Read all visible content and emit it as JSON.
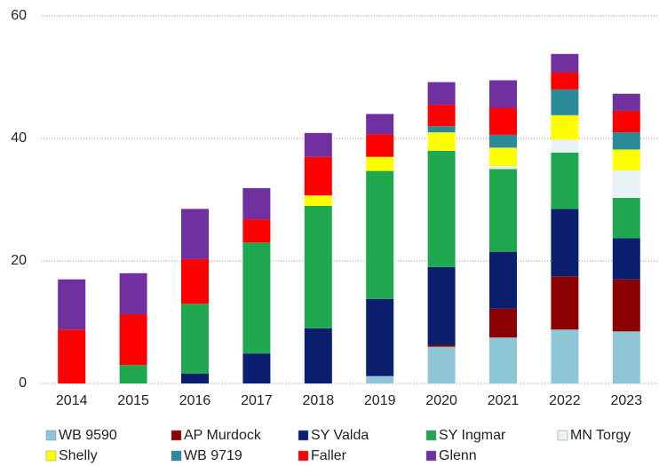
{
  "chart_data": {
    "type": "stacked_bar",
    "categories": [
      "2014",
      "2015",
      "2016",
      "2017",
      "2018",
      "2019",
      "2020",
      "2021",
      "2022",
      "2023"
    ],
    "series": [
      {
        "name": "WB 9590",
        "color": "#8fc6d6",
        "values": [
          0,
          0,
          0,
          0,
          0,
          1.2,
          6,
          7.5,
          8.8,
          8.5
        ]
      },
      {
        "name": "AP Murdock",
        "color": "#8b0000",
        "values": [
          0,
          0,
          0,
          0,
          0,
          0,
          0.3,
          4.7,
          8.7,
          8.5
        ]
      },
      {
        "name": "SY Valda",
        "color": "#0a1f6e",
        "values": [
          0,
          0,
          1.6,
          4.9,
          9,
          12.6,
          12.7,
          9.3,
          11,
          6.7
        ]
      },
      {
        "name": "SY Ingmar",
        "color": "#1fa84f",
        "values": [
          0,
          3,
          11.4,
          18.1,
          20,
          20.9,
          19,
          13.5,
          9.2,
          6.6
        ]
      },
      {
        "name": "MN Torgy",
        "color": "#e8f2f5",
        "values": [
          0,
          0,
          0,
          0,
          0,
          0,
          0,
          0.5,
          2.1,
          4.5
        ]
      },
      {
        "name": "Shelly",
        "color": "#ffff00",
        "values": [
          0,
          0,
          0,
          0,
          1.7,
          2.3,
          3,
          3,
          4,
          3.4
        ]
      },
      {
        "name": "WB 9719",
        "color": "#2a8a9a",
        "values": [
          0,
          0,
          0,
          0,
          0,
          0,
          1,
          2.1,
          4.2,
          2.8
        ]
      },
      {
        "name": "Faller",
        "color": "#ff0000",
        "values": [
          8.8,
          8.3,
          7.3,
          3.8,
          6.3,
          3.7,
          3.5,
          4.4,
          2.8,
          3.5
        ]
      },
      {
        "name": "Glenn",
        "color": "#7030a0",
        "values": [
          8.2,
          6.7,
          8.2,
          5.1,
          3.9,
          3.3,
          3.7,
          4.5,
          3,
          2.8
        ]
      }
    ],
    "ylim": [
      0,
      60
    ],
    "yticks": [
      0,
      20,
      40,
      60
    ],
    "grid": true
  }
}
